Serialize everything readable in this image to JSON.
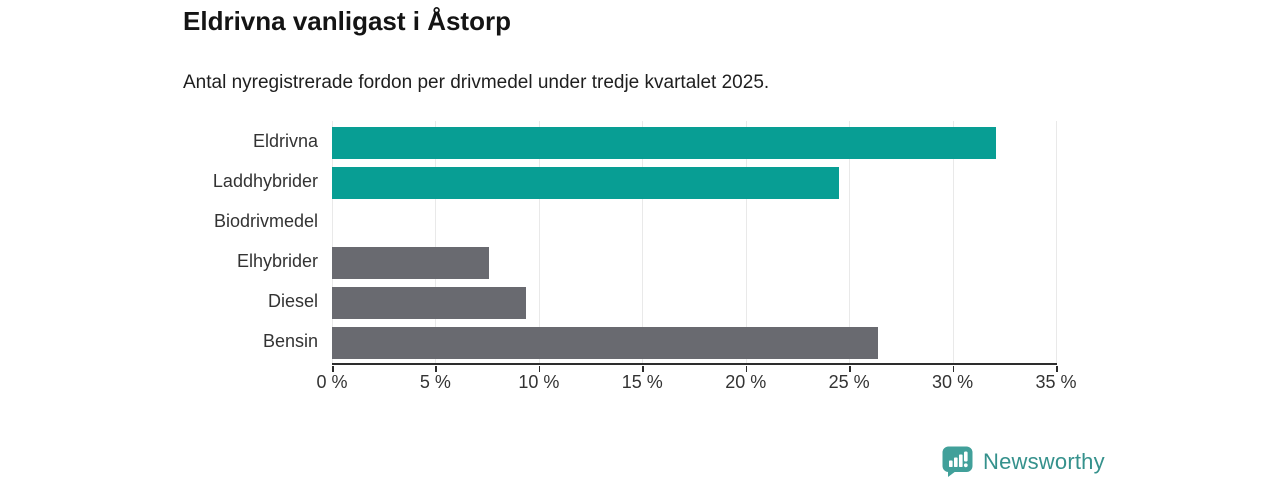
{
  "chart_data": {
    "type": "bar",
    "orientation": "horizontal",
    "title": "Eldrivna vanligast i Åstorp",
    "subtitle": "Antal nyregistrerade fordon per drivmedel under tredje kvartalet 2025.",
    "categories": [
      "Eldrivna",
      "Laddhybrider",
      "Biodrivmedel",
      "Elhybrider",
      "Diesel",
      "Bensin"
    ],
    "values": [
      32.1,
      24.5,
      0,
      7.6,
      9.4,
      26.4
    ],
    "bar_colors": [
      "#089e94",
      "#089e94",
      "#089e94",
      "#696a70",
      "#696a70",
      "#696a70"
    ],
    "xlabel": "",
    "ylabel": "",
    "xlim": [
      0,
      35
    ],
    "x_tick_step": 5,
    "x_ticks": [
      "0 %",
      "5 %",
      "10 %",
      "15 %",
      "20 %",
      "25 %",
      "30 %",
      "35 %"
    ],
    "grid": "vertical-gridlines-on",
    "legend": "none",
    "unit": "percent"
  },
  "colors": {
    "teal_bar": "#089e94",
    "gray_bar": "#696a70",
    "gridline": "#e9e9e9",
    "axis": "#2d2d2d",
    "text": "#333333",
    "title_text": "#141414"
  },
  "branding": {
    "logo_text": "Newsworthy",
    "logo_text_color": "#35918c",
    "logo_icon_color": "#41a09a"
  }
}
